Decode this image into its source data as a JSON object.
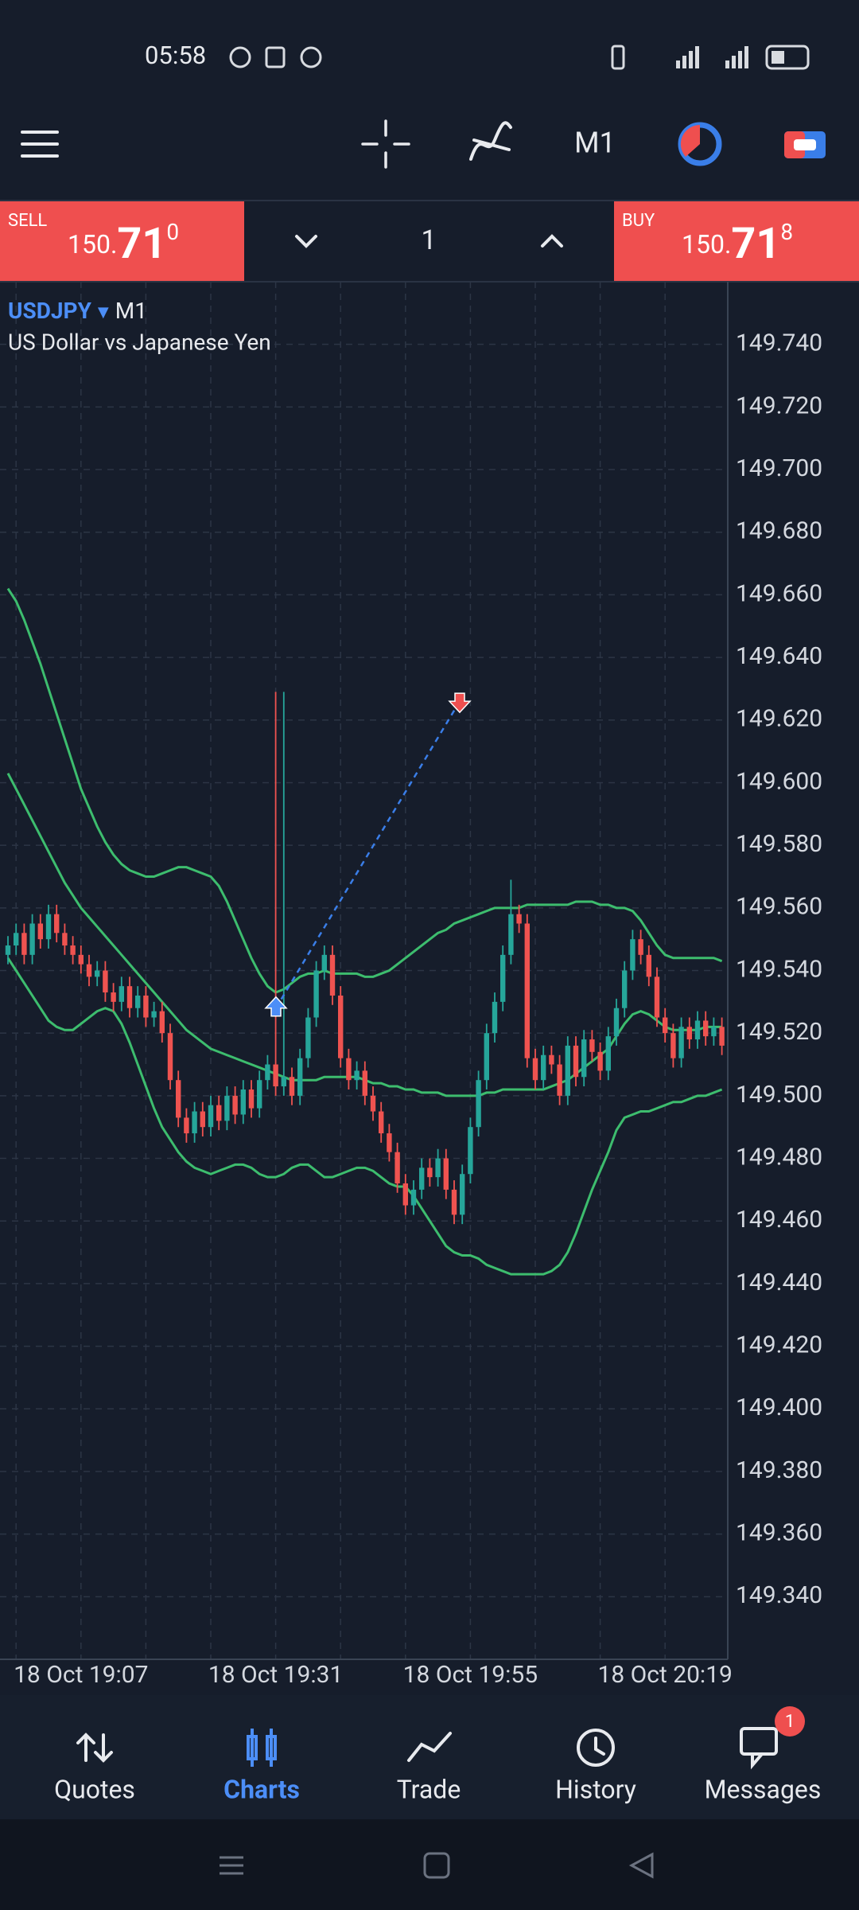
{
  "status_bar": {
    "time": "05:58"
  },
  "toolbar": {
    "timeframe": "M1"
  },
  "trade_panel": {
    "sell": {
      "label": "SELL",
      "price_prefix": "150.",
      "price_big": "71",
      "price_sup": "0"
    },
    "volume": "1",
    "buy": {
      "label": "BUY",
      "price_prefix": "150.",
      "price_big": "71",
      "price_sup": "8"
    }
  },
  "chart_data": {
    "type": "candlestick",
    "symbol": "USDJPY",
    "timeframe": "M1",
    "description": "US Dollar vs Japanese Yen",
    "up_color": "#26a69a",
    "down_color": "#ef5350",
    "grid": true,
    "categories": [
      null,
      null,
      null,
      null,
      null,
      null,
      null,
      null,
      null,
      "18 Oct 19:07",
      null,
      null,
      null,
      null,
      null,
      null,
      null,
      null,
      null,
      null,
      null,
      null,
      null,
      null,
      null,
      null,
      null,
      null,
      null,
      null,
      null,
      null,
      null,
      "18 Oct 19:31",
      null,
      null,
      null,
      null,
      null,
      null,
      null,
      null,
      null,
      null,
      null,
      null,
      null,
      null,
      null,
      null,
      null,
      null,
      null,
      null,
      null,
      null,
      null,
      "18 Oct 19:55",
      null,
      null,
      null,
      null,
      null,
      null,
      null,
      null,
      null,
      null,
      null,
      null,
      null,
      null,
      null,
      null,
      null,
      null,
      null,
      null,
      null,
      null,
      null,
      "18 Oct 20:19",
      null,
      null,
      null,
      null,
      null,
      null,
      null
    ],
    "open": [
      149.545,
      149.548,
      149.552,
      149.545,
      149.555,
      149.55,
      149.558,
      149.552,
      149.548,
      149.545,
      149.542,
      149.538,
      149.54,
      149.533,
      149.53,
      149.535,
      149.528,
      149.532,
      149.525,
      149.527,
      149.52,
      149.505,
      149.493,
      149.488,
      149.495,
      149.49,
      149.497,
      149.492,
      149.5,
      149.494,
      149.502,
      149.496,
      149.505,
      149.51,
      149.503,
      149.506,
      149.5,
      149.512,
      149.525,
      149.54,
      149.545,
      149.532,
      149.512,
      149.505,
      149.508,
      149.5,
      149.495,
      149.488,
      149.482,
      149.472,
      149.465,
      149.47,
      149.477,
      149.474,
      149.48,
      149.47,
      149.462,
      149.475,
      149.49,
      149.505,
      149.52,
      149.53,
      149.545,
      149.558,
      149.555,
      149.512,
      149.505,
      149.513,
      149.51,
      149.5,
      149.516,
      149.506,
      149.518,
      149.514,
      149.508,
      149.519,
      149.528,
      149.54,
      149.55,
      149.545,
      149.538,
      149.525,
      149.52,
      149.512,
      149.522,
      149.518,
      149.524,
      149.519,
      149.522
    ],
    "high": [
      149.551,
      149.555,
      149.555,
      149.558,
      149.558,
      149.561,
      149.561,
      149.555,
      149.551,
      149.548,
      149.545,
      149.543,
      149.543,
      149.536,
      149.538,
      149.538,
      149.535,
      149.535,
      149.53,
      149.53,
      149.523,
      149.508,
      149.496,
      149.498,
      149.498,
      149.5,
      149.5,
      149.503,
      149.503,
      149.505,
      149.505,
      149.508,
      149.513,
      149.629,
      149.629,
      149.509,
      149.515,
      149.528,
      149.543,
      149.548,
      149.548,
      149.535,
      149.515,
      149.511,
      149.511,
      149.503,
      149.498,
      149.491,
      149.485,
      149.475,
      149.473,
      149.48,
      149.48,
      149.483,
      149.483,
      149.473,
      149.478,
      149.493,
      149.508,
      149.523,
      149.533,
      149.548,
      149.569,
      149.561,
      149.558,
      149.515,
      149.516,
      149.516,
      149.513,
      149.519,
      149.519,
      149.521,
      149.521,
      149.517,
      149.522,
      149.531,
      149.543,
      149.553,
      149.553,
      149.548,
      149.541,
      149.528,
      149.523,
      149.525,
      149.525,
      149.527,
      149.527,
      149.525,
      149.525
    ],
    "low": [
      149.542,
      149.545,
      149.542,
      149.542,
      149.547,
      149.547,
      149.549,
      149.545,
      149.542,
      149.539,
      149.535,
      149.535,
      149.53,
      149.527,
      149.527,
      149.525,
      149.525,
      149.522,
      149.522,
      149.517,
      149.502,
      149.49,
      149.485,
      149.485,
      149.487,
      149.487,
      149.489,
      149.489,
      149.491,
      149.491,
      149.493,
      149.493,
      149.502,
      149.5,
      149.5,
      149.497,
      149.497,
      149.509,
      149.522,
      149.537,
      149.529,
      149.509,
      149.502,
      149.502,
      149.497,
      149.492,
      149.485,
      149.479,
      149.469,
      149.462,
      149.462,
      149.467,
      149.471,
      149.471,
      149.467,
      149.459,
      149.459,
      149.472,
      149.487,
      149.502,
      149.517,
      149.527,
      149.542,
      149.552,
      149.509,
      149.502,
      149.502,
      149.507,
      149.497,
      149.497,
      149.503,
      149.503,
      149.511,
      149.505,
      149.505,
      149.516,
      149.525,
      149.537,
      149.542,
      149.535,
      149.522,
      149.517,
      149.509,
      149.509,
      149.515,
      149.515,
      149.516,
      149.516,
      149.513
    ],
    "close": [
      149.548,
      149.552,
      149.545,
      149.555,
      149.55,
      149.558,
      149.552,
      149.548,
      149.545,
      149.542,
      149.538,
      149.54,
      149.533,
      149.53,
      149.535,
      149.528,
      149.532,
      149.525,
      149.527,
      149.52,
      149.505,
      149.493,
      149.488,
      149.495,
      149.49,
      149.497,
      149.492,
      149.5,
      149.494,
      149.502,
      149.496,
      149.505,
      149.51,
      149.503,
      149.506,
      149.5,
      149.512,
      149.525,
      149.54,
      149.545,
      149.532,
      149.512,
      149.505,
      149.508,
      149.5,
      149.495,
      149.488,
      149.482,
      149.472,
      149.465,
      149.47,
      149.477,
      149.474,
      149.48,
      149.47,
      149.462,
      149.475,
      149.49,
      149.505,
      149.52,
      149.53,
      149.545,
      149.558,
      149.555,
      149.512,
      149.505,
      149.513,
      149.51,
      149.5,
      149.516,
      149.506,
      149.518,
      149.514,
      149.508,
      149.519,
      149.528,
      149.54,
      149.55,
      149.545,
      149.538,
      149.525,
      149.52,
      149.512,
      149.522,
      149.518,
      149.524,
      149.519,
      149.522,
      149.516
    ],
    "bands": [
      {
        "color": "#3dbd6e",
        "values": [
          149.662,
          149.658,
          149.652,
          149.645,
          149.638,
          149.63,
          149.622,
          149.614,
          149.606,
          149.598,
          149.592,
          149.586,
          149.581,
          149.577,
          149.574,
          149.572,
          149.571,
          149.57,
          149.57,
          149.571,
          149.572,
          149.573,
          149.573,
          149.572,
          149.571,
          149.57,
          149.567,
          149.562,
          149.556,
          149.55,
          149.544,
          149.539,
          149.535,
          149.533,
          149.534,
          149.536,
          149.538,
          149.539,
          149.539,
          149.54,
          149.539,
          149.539,
          149.539,
          149.539,
          149.538,
          149.538,
          149.539,
          149.54,
          149.542,
          149.544,
          149.546,
          149.548,
          149.55,
          149.552,
          149.553,
          149.555,
          149.556,
          149.557,
          149.558,
          149.559,
          149.56,
          149.56,
          149.56,
          149.56,
          149.561,
          149.561,
          149.561,
          149.561,
          149.561,
          149.561,
          149.562,
          149.562,
          149.562,
          149.561,
          149.561,
          149.56,
          149.56,
          149.559,
          149.556,
          149.552,
          149.548,
          149.545,
          149.544,
          149.544,
          149.544,
          149.544,
          149.544,
          149.544,
          149.543
        ]
      },
      {
        "color": "#3dbd6e",
        "values": [
          149.603,
          149.598,
          149.593,
          149.588,
          149.583,
          149.578,
          149.573,
          149.568,
          149.564,
          149.56,
          149.557,
          149.554,
          149.551,
          149.548,
          149.545,
          149.542,
          149.539,
          149.536,
          149.533,
          149.53,
          149.527,
          149.524,
          149.521,
          149.519,
          149.517,
          149.515,
          149.514,
          149.513,
          149.512,
          149.511,
          149.51,
          149.509,
          149.508,
          149.507,
          149.506,
          149.505,
          149.505,
          149.505,
          149.505,
          149.506,
          149.506,
          149.506,
          149.506,
          149.506,
          149.505,
          149.504,
          149.504,
          149.503,
          149.503,
          149.502,
          149.502,
          149.501,
          149.501,
          149.501,
          149.5,
          149.5,
          149.5,
          149.5,
          149.5,
          149.501,
          149.501,
          149.502,
          149.502,
          149.502,
          149.502,
          149.502,
          149.502,
          149.503,
          149.504,
          149.505,
          149.507,
          149.509,
          149.511,
          149.513,
          149.515,
          149.519,
          149.523,
          149.526,
          149.527,
          149.526,
          149.524,
          149.522,
          149.521,
          149.521,
          149.521,
          149.521,
          149.522,
          149.522,
          149.522
        ]
      },
      {
        "color": "#3dbd6e",
        "values": [
          149.544,
          149.54,
          149.536,
          149.532,
          149.528,
          149.524,
          149.522,
          149.521,
          149.521,
          149.523,
          149.525,
          149.527,
          149.528,
          149.527,
          149.523,
          149.517,
          149.51,
          149.503,
          149.496,
          149.49,
          149.486,
          149.482,
          149.479,
          149.477,
          149.476,
          149.475,
          149.476,
          149.477,
          149.478,
          149.478,
          149.477,
          149.475,
          149.474,
          149.474,
          149.475,
          149.477,
          149.478,
          149.478,
          149.476,
          149.474,
          149.474,
          149.475,
          149.476,
          149.477,
          149.477,
          149.476,
          149.474,
          149.472,
          149.471,
          149.471,
          149.468,
          149.464,
          149.46,
          149.456,
          149.452,
          149.45,
          149.449,
          149.449,
          149.448,
          149.446,
          149.445,
          149.444,
          149.443,
          149.443,
          149.443,
          149.443,
          149.443,
          149.444,
          149.446,
          149.45,
          149.456,
          149.463,
          149.47,
          149.476,
          149.482,
          149.489,
          149.493,
          149.494,
          149.495,
          149.495,
          149.496,
          149.497,
          149.498,
          149.498,
          149.499,
          149.5,
          149.5,
          149.501,
          149.502
        ]
      }
    ],
    "trade": {
      "open_price": 149.528,
      "close_price": 149.626
    },
    "ylim": [
      149.32,
      149.76
    ],
    "yticks": [
      {
        "value": 149.74,
        "label": "149.740"
      },
      {
        "value": 149.72,
        "label": "149.720"
      },
      {
        "value": 149.7,
        "label": "149.700"
      },
      {
        "value": 149.68,
        "label": "149.680"
      },
      {
        "value": 149.66,
        "label": "149.660"
      },
      {
        "value": 149.64,
        "label": "149.640"
      },
      {
        "value": 149.62,
        "label": "149.620"
      },
      {
        "value": 149.6,
        "label": "149.600"
      },
      {
        "value": 149.58,
        "label": "149.580"
      },
      {
        "value": 149.56,
        "label": "149.560"
      },
      {
        "value": 149.54,
        "label": "149.540"
      },
      {
        "value": 149.52,
        "label": "149.520"
      },
      {
        "value": 149.5,
        "label": "149.500"
      },
      {
        "value": 149.48,
        "label": "149.480"
      },
      {
        "value": 149.46,
        "label": "149.460"
      },
      {
        "value": 149.44,
        "label": "149.440"
      },
      {
        "value": 149.42,
        "label": "149.420"
      },
      {
        "value": 149.4,
        "label": "149.400"
      },
      {
        "value": 149.38,
        "label": "149.380"
      },
      {
        "value": 149.36,
        "label": "149.360"
      },
      {
        "value": 149.34,
        "label": "149.340"
      }
    ]
  },
  "bottom_nav": {
    "items": [
      "Quotes",
      "Charts",
      "Trade",
      "History",
      "Messages"
    ],
    "messages_badge": "1"
  }
}
